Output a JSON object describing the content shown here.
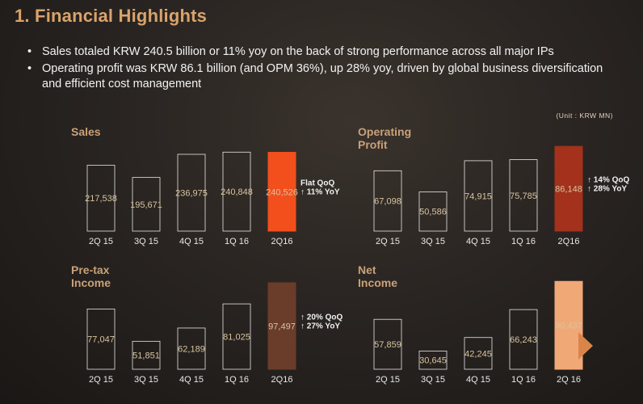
{
  "header": {
    "title": "1. Financial Highlights",
    "bullets": [
      "Sales totaled KRW 240.5 billion or 11% yoy on the back of strong performance across all major IPs",
      "Operating profit was KRW 86.1 billion (and OPM 36%), up 28% yoy, driven by global business diversification and efficient cost management"
    ],
    "unit": "(Unit : KRW  MN)"
  },
  "colors": {
    "background": "#2a2522",
    "title": "#d9a36b",
    "chart_title": "#c9a178",
    "bar_outline": "#e6e6e6",
    "sales_highlight": "#f24f1d",
    "op_highlight": "#a3311b",
    "pretax_highlight": "#6a3c2a",
    "net_highlight": "#f1a877"
  },
  "chart_data": [
    {
      "type": "bar",
      "title": "Sales",
      "categories": [
        "2Q 15",
        "3Q 15",
        "4Q 15",
        "1Q 16",
        "2Q16"
      ],
      "values": [
        217538,
        195671,
        236975,
        240848,
        240526
      ],
      "value_labels": [
        "217,538",
        "195,671",
        "236,975",
        "240,848",
        "240,526"
      ],
      "ylim": [
        100000,
        260000
      ],
      "highlight_index": 4,
      "growth": [
        "Flat  QoQ",
        "↑ 11% YoY"
      ]
    },
    {
      "type": "bar",
      "title": "Operating Profit",
      "categories": [
        "2Q 15",
        "3Q 15",
        "4Q 15",
        "1Q 16",
        "2Q16"
      ],
      "values": [
        67098,
        50586,
        74915,
        75785,
        86148
      ],
      "value_labels": [
        "67,098",
        "50,586",
        "74,915",
        "75,785",
        "86,148"
      ],
      "ylim": [
        20000,
        90000
      ],
      "highlight_index": 4,
      "growth": [
        "↑ 14%  QoQ",
        "↑ 28%  YoY"
      ]
    },
    {
      "type": "bar",
      "title": "Pre-tax Income",
      "categories": [
        "2Q 15",
        "3Q 15",
        "4Q 15",
        "1Q 16",
        "2Q16"
      ],
      "values": [
        77047,
        51851,
        62189,
        81025,
        97497
      ],
      "value_labels": [
        "77,047",
        "51,851",
        "62,189",
        "81,025",
        "97,497"
      ],
      "ylim": [
        30000,
        100000
      ],
      "highlight_index": 4,
      "growth": [
        "↑ 20%  QoQ",
        "↑ 27%  YoY"
      ]
    },
    {
      "type": "bar",
      "title": "Net Income",
      "categories": [
        "2Q 15",
        "3Q 15",
        "4Q 15",
        "1Q 16",
        "2Q 16"
      ],
      "values": [
        57859,
        30645,
        42245,
        66243,
        90437
      ],
      "value_labels": [
        "57,859",
        "30,645",
        "42,245",
        "66,243",
        "90,437"
      ],
      "ylim": [
        15000,
        92000
      ],
      "highlight_index": 4,
      "growth": []
    }
  ]
}
